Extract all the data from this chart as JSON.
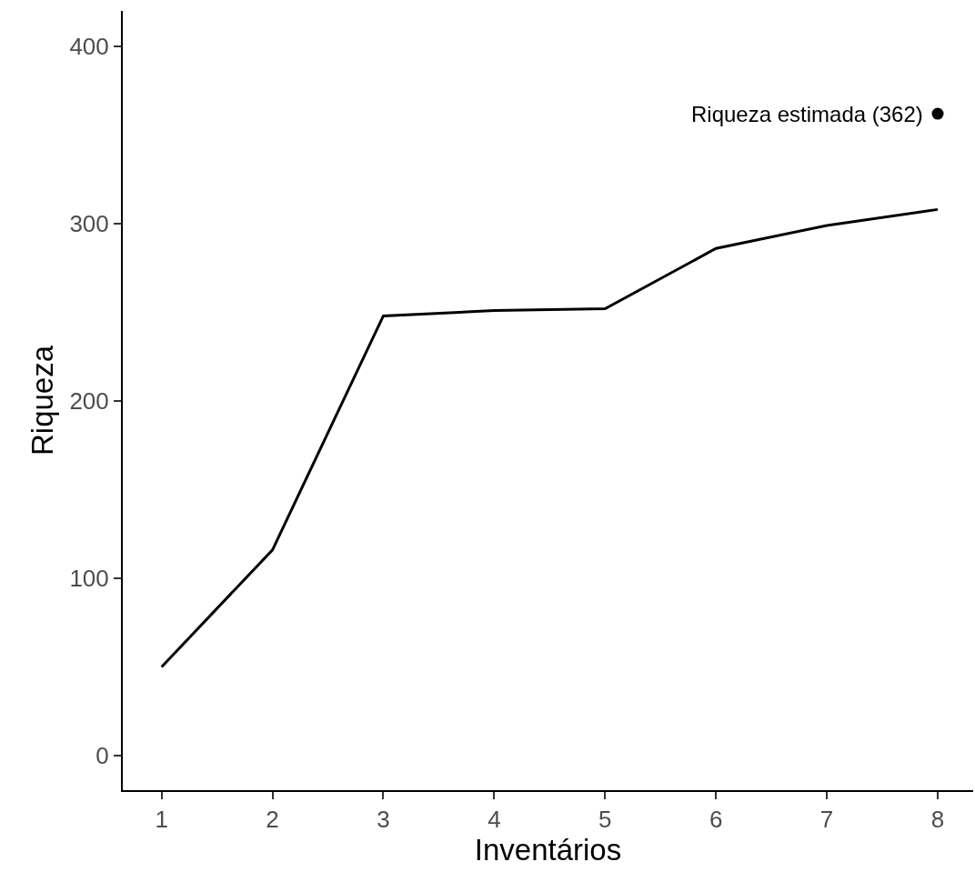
{
  "chart_data": {
    "type": "line",
    "xlabel": "Inventários",
    "ylabel": "Riqueza",
    "x": [
      1,
      2,
      3,
      4,
      5,
      6,
      7,
      8
    ],
    "series": [
      {
        "type": "line",
        "color": "#000000",
        "marker": "none",
        "values": [
          50,
          116,
          248,
          251,
          252,
          286,
          299,
          308
        ]
      },
      {
        "type": "scatter",
        "color": "#000000",
        "marker": "circle",
        "x": [
          8
        ],
        "values": [
          362
        ]
      }
    ],
    "annotations": [
      {
        "text": "Riqueza estimada (362)",
        "x": 8,
        "y": 362
      }
    ],
    "xlim": [
      0.65,
      8.32
    ],
    "xticks": [
      1,
      2,
      3,
      4,
      5,
      6,
      7,
      8
    ],
    "ylim": [
      -19.5,
      420
    ],
    "yticks": [
      0,
      100,
      200,
      300,
      400
    ],
    "grid": false,
    "line_style": "solid"
  }
}
